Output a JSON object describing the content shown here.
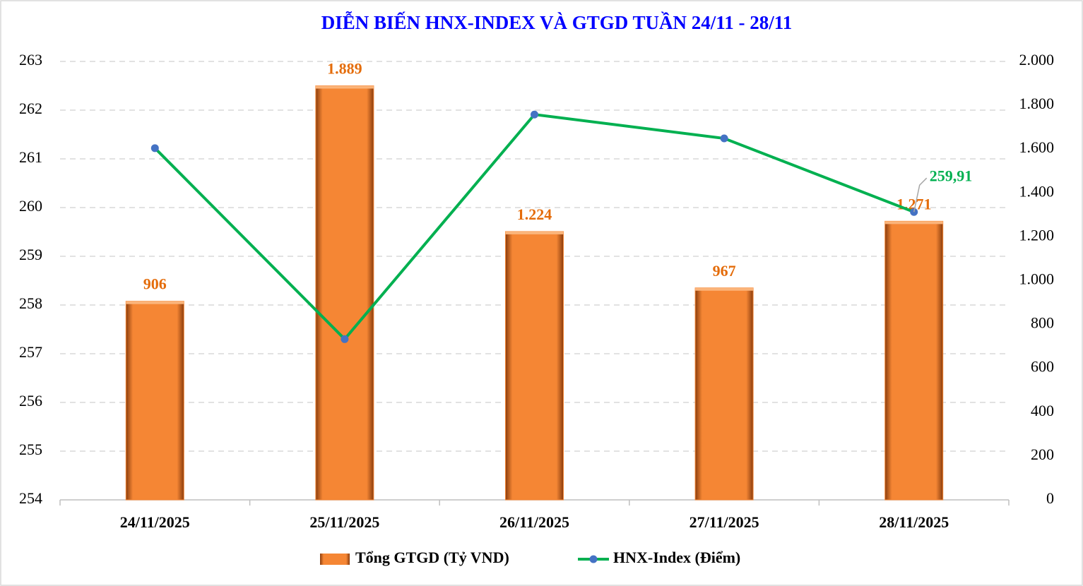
{
  "chart_data": {
    "type": "bar",
    "title": "DIỄN BIẾN HNX-INDEX VÀ GTGD TUẦN 24/11 - 28/11",
    "categories": [
      "24/11/2025",
      "25/11/2025",
      "26/11/2025",
      "27/11/2025",
      "28/11/2025"
    ],
    "series": [
      {
        "name": "Tổng GTGD (Tỷ VND)",
        "type": "bar",
        "axis": "y2",
        "color": "#f58634",
        "values": [
          906,
          1889,
          1224,
          967,
          1271
        ],
        "value_labels": [
          "906",
          "1.889",
          "1.224",
          "967",
          "1.271"
        ]
      },
      {
        "name": "HNX-Index (Điểm)",
        "type": "line",
        "axis": "y",
        "color": "#00b050",
        "marker_color": "#4472c4",
        "values": [
          261.22,
          257.3,
          261.91,
          261.42,
          259.91
        ],
        "value_labels": [
          null,
          null,
          null,
          null,
          "259,91"
        ]
      }
    ],
    "ylim": [
      254,
      263
    ],
    "yticks": [
      254,
      255,
      256,
      257,
      258,
      259,
      260,
      261,
      262,
      263
    ],
    "y2lim": [
      0,
      2000
    ],
    "y2ticks": [
      0,
      200,
      400,
      600,
      800,
      {
        "value": 1000,
        "label": "1.000"
      },
      {
        "value": 1200,
        "label": "1.200"
      },
      {
        "value": 1400,
        "label": "1.400"
      },
      {
        "value": 1600,
        "label": "1.600"
      },
      {
        "value": 1800,
        "label": "1.800"
      },
      {
        "value": 2000,
        "label": "2.000"
      }
    ],
    "grid": true,
    "legend": "bottom"
  }
}
